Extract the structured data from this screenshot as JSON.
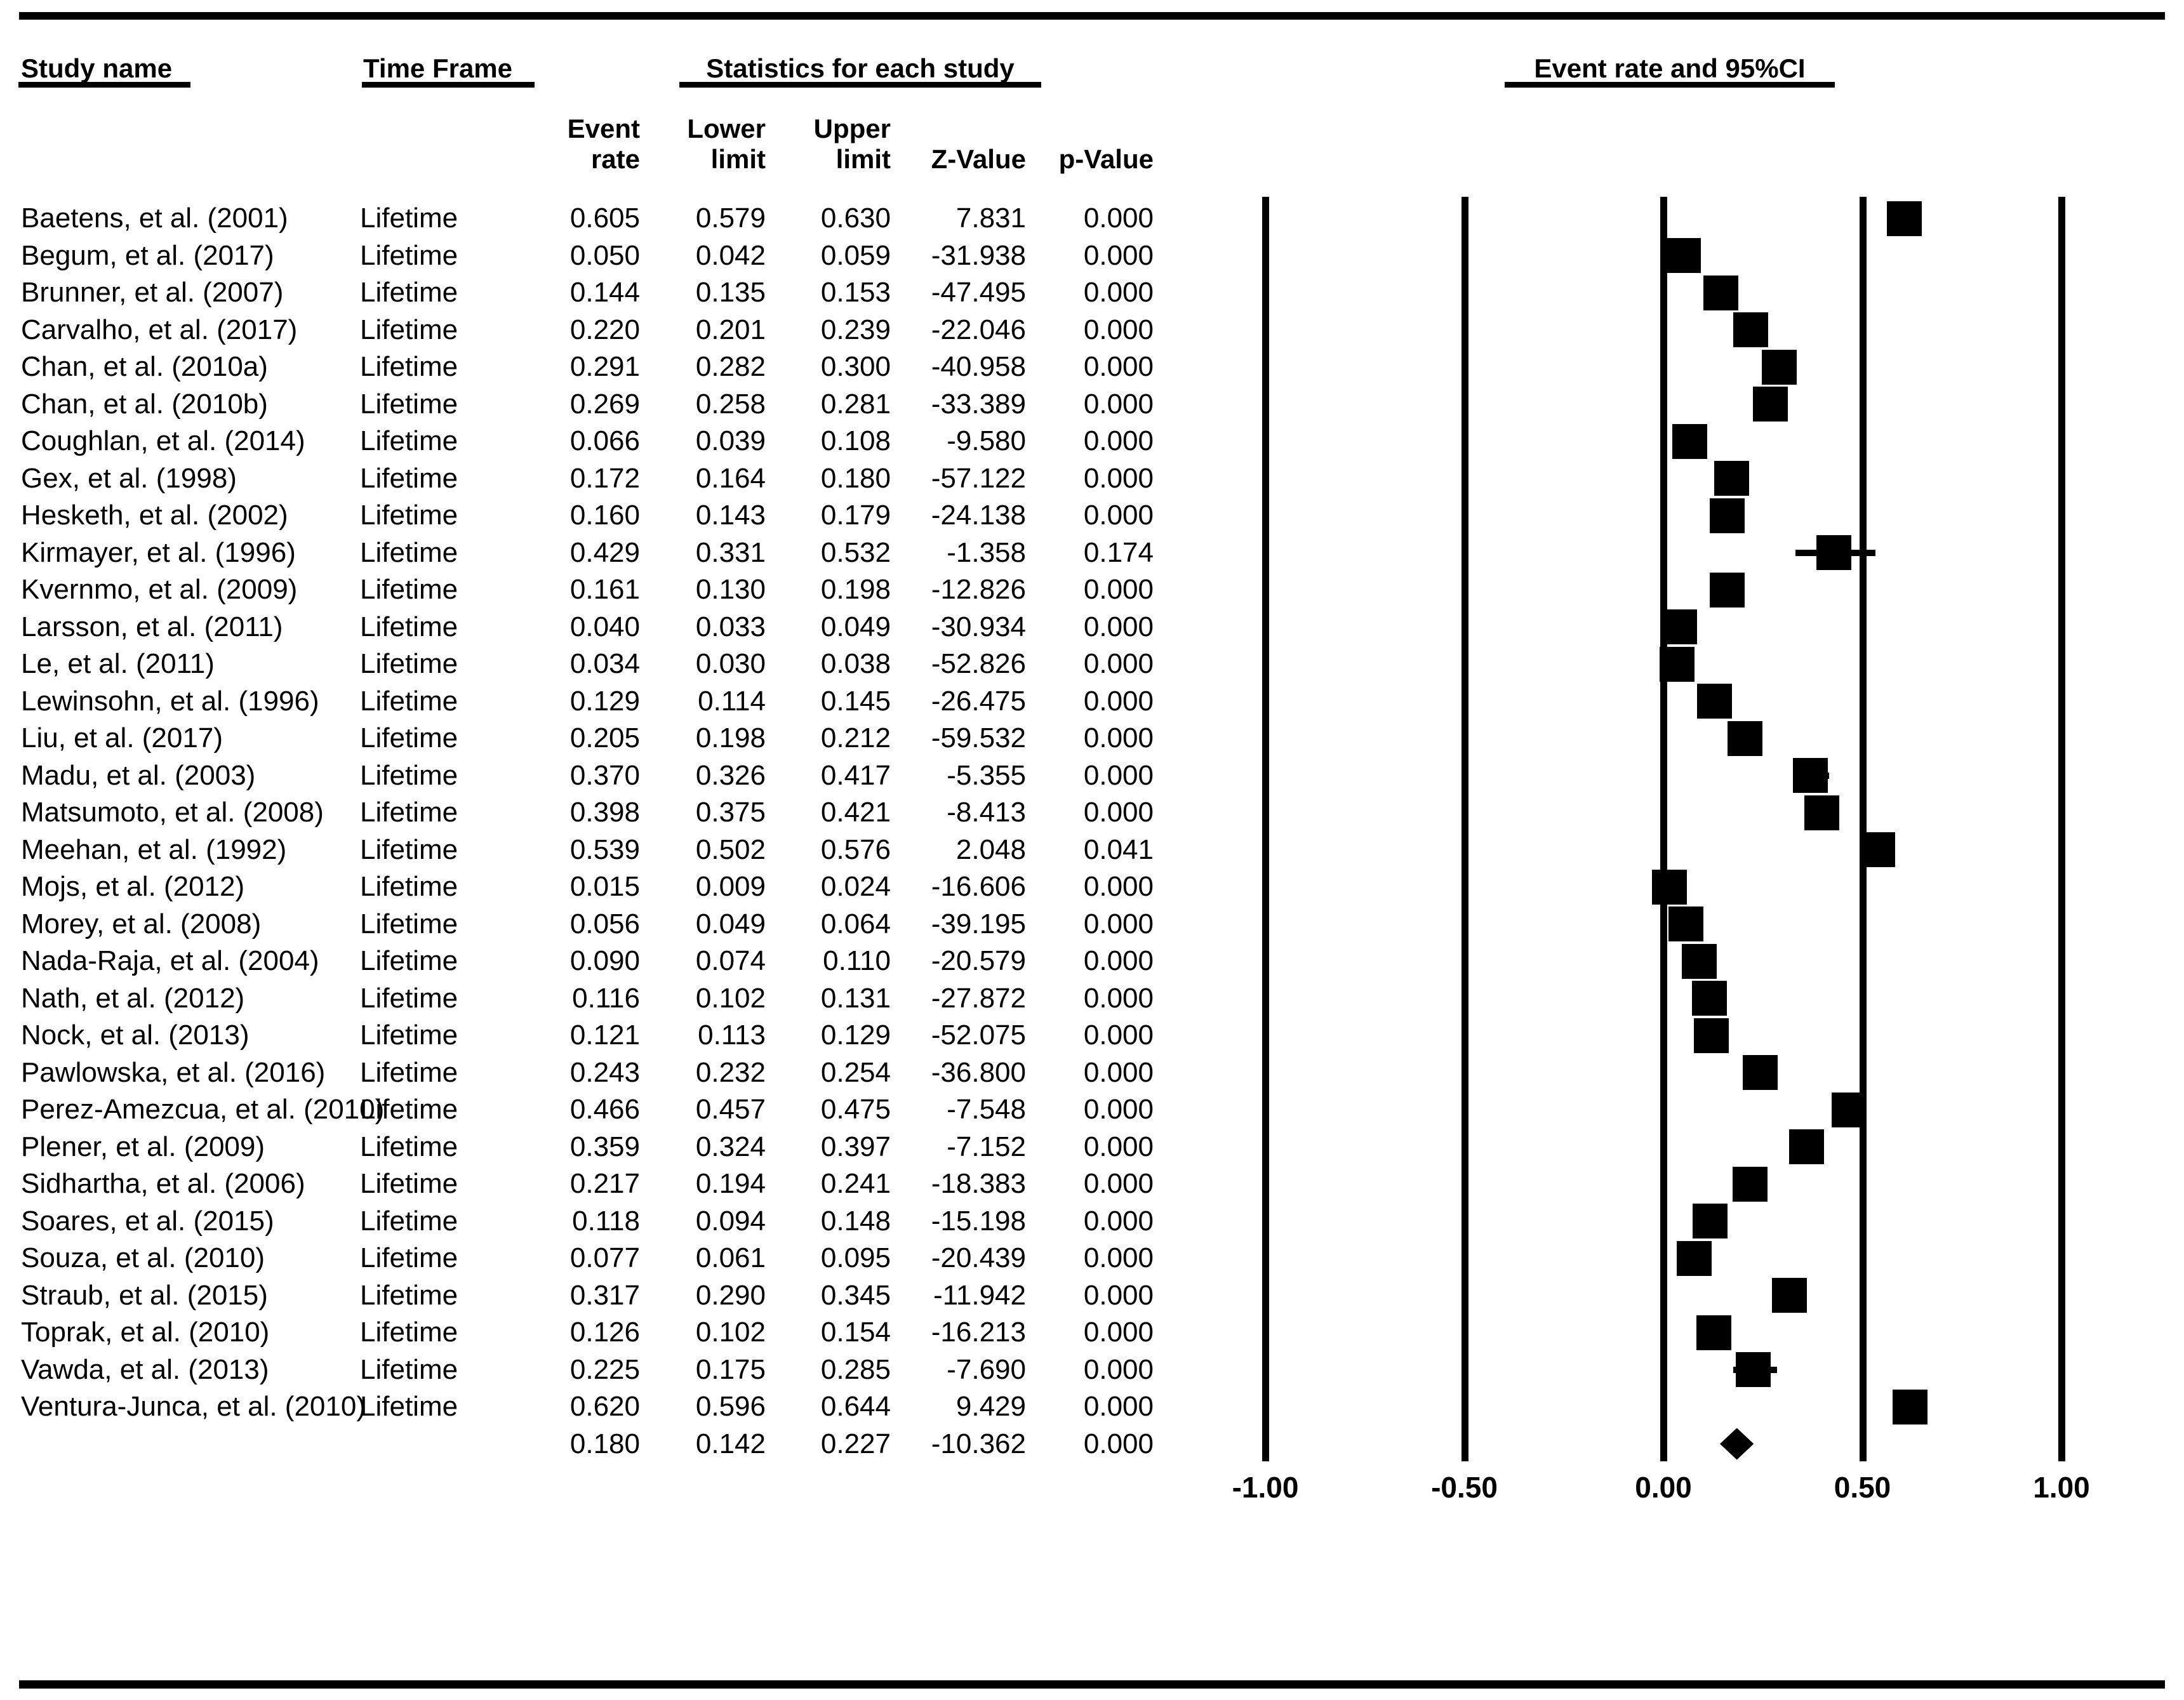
{
  "figure": {
    "columns": {
      "study": "Study name",
      "time_frame": "Time Frame",
      "stats_group": "Statistics for each study",
      "plot_group": "Event rate and 95%CI"
    },
    "subheaders": {
      "event_line1": "Event",
      "event_line2": "rate",
      "lower_line1": "Lower",
      "lower_line2": "limit",
      "upper_line1": "Upper",
      "upper_line2": "limit",
      "z": "Z-Value",
      "p": "p-Value"
    }
  },
  "chart_data": {
    "type": "scatter",
    "variant": "forest-plot",
    "title": "Event rate and 95%CI",
    "xlabel": "Event rate",
    "xlim": [
      -1.0,
      1.0
    ],
    "grid": "vertical-lines-at-ticks",
    "x_axis": {
      "tick_values": [
        -1.0,
        -0.5,
        0.0,
        0.5,
        1.0
      ],
      "tick_labels": [
        "-1.00",
        "-0.50",
        "0.00",
        "0.50",
        "1.00"
      ]
    },
    "rows": [
      {
        "name": "Baetens, et al. (2001)",
        "time": "Lifetime",
        "rate": "0.605",
        "lower": "0.579",
        "upper": "0.630",
        "z": "7.831",
        "p": "0.000"
      },
      {
        "name": "Begum, et al. (2017)",
        "time": "Lifetime",
        "rate": "0.050",
        "lower": "0.042",
        "upper": "0.059",
        "z": "-31.938",
        "p": "0.000"
      },
      {
        "name": "Brunner, et al. (2007)",
        "time": "Lifetime",
        "rate": "0.144",
        "lower": "0.135",
        "upper": "0.153",
        "z": "-47.495",
        "p": "0.000"
      },
      {
        "name": "Carvalho, et al. (2017)",
        "time": "Lifetime",
        "rate": "0.220",
        "lower": "0.201",
        "upper": "0.239",
        "z": "-22.046",
        "p": "0.000"
      },
      {
        "name": "Chan, et al. (2010a)",
        "time": "Lifetime",
        "rate": "0.291",
        "lower": "0.282",
        "upper": "0.300",
        "z": "-40.958",
        "p": "0.000"
      },
      {
        "name": "Chan, et al. (2010b)",
        "time": "Lifetime",
        "rate": "0.269",
        "lower": "0.258",
        "upper": "0.281",
        "z": "-33.389",
        "p": "0.000"
      },
      {
        "name": "Coughlan, et al. (2014)",
        "time": "Lifetime",
        "rate": "0.066",
        "lower": "0.039",
        "upper": "0.108",
        "z": "-9.580",
        "p": "0.000"
      },
      {
        "name": "Gex, et al. (1998)",
        "time": "Lifetime",
        "rate": "0.172",
        "lower": "0.164",
        "upper": "0.180",
        "z": "-57.122",
        "p": "0.000"
      },
      {
        "name": "Hesketh, et al. (2002)",
        "time": "Lifetime",
        "rate": "0.160",
        "lower": "0.143",
        "upper": "0.179",
        "z": "-24.138",
        "p": "0.000"
      },
      {
        "name": "Kirmayer, et al. (1996)",
        "time": "Lifetime",
        "rate": "0.429",
        "lower": "0.331",
        "upper": "0.532",
        "z": "-1.358",
        "p": "0.174"
      },
      {
        "name": "Kvernmo, et al. (2009)",
        "time": "Lifetime",
        "rate": "0.161",
        "lower": "0.130",
        "upper": "0.198",
        "z": "-12.826",
        "p": "0.000"
      },
      {
        "name": "Larsson, et al. (2011)",
        "time": "Lifetime",
        "rate": "0.040",
        "lower": "0.033",
        "upper": "0.049",
        "z": "-30.934",
        "p": "0.000"
      },
      {
        "name": "Le, et al. (2011)",
        "time": "Lifetime",
        "rate": "0.034",
        "lower": "0.030",
        "upper": "0.038",
        "z": "-52.826",
        "p": "0.000"
      },
      {
        "name": "Lewinsohn, et al. (1996)",
        "time": "Lifetime",
        "rate": "0.129",
        "lower": "0.114",
        "upper": "0.145",
        "z": "-26.475",
        "p": "0.000"
      },
      {
        "name": "Liu, et al. (2017)",
        "time": "Lifetime",
        "rate": "0.205",
        "lower": "0.198",
        "upper": "0.212",
        "z": "-59.532",
        "p": "0.000"
      },
      {
        "name": "Madu, et al. (2003)",
        "time": "Lifetime",
        "rate": "0.370",
        "lower": "0.326",
        "upper": "0.417",
        "z": "-5.355",
        "p": "0.000"
      },
      {
        "name": "Matsumoto, et al. (2008)",
        "time": "Lifetime",
        "rate": "0.398",
        "lower": "0.375",
        "upper": "0.421",
        "z": "-8.413",
        "p": "0.000"
      },
      {
        "name": "Meehan, et al. (1992)",
        "time": "Lifetime",
        "rate": "0.539",
        "lower": "0.502",
        "upper": "0.576",
        "z": "2.048",
        "p": "0.041"
      },
      {
        "name": "Mojs, et al. (2012)",
        "time": "Lifetime",
        "rate": "0.015",
        "lower": "0.009",
        "upper": "0.024",
        "z": "-16.606",
        "p": "0.000"
      },
      {
        "name": "Morey, et al. (2008)",
        "time": "Lifetime",
        "rate": "0.056",
        "lower": "0.049",
        "upper": "0.064",
        "z": "-39.195",
        "p": "0.000"
      },
      {
        "name": "Nada-Raja, et al. (2004)",
        "time": "Lifetime",
        "rate": "0.090",
        "lower": "0.074",
        "upper": "0.110",
        "z": "-20.579",
        "p": "0.000"
      },
      {
        "name": "Nath, et al. (2012)",
        "time": "Lifetime",
        "rate": "0.116",
        "lower": "0.102",
        "upper": "0.131",
        "z": "-27.872",
        "p": "0.000"
      },
      {
        "name": "Nock, et al. (2013)",
        "time": "Lifetime",
        "rate": "0.121",
        "lower": "0.113",
        "upper": "0.129",
        "z": "-52.075",
        "p": "0.000"
      },
      {
        "name": "Pawlowska, et al.  (2016)",
        "time": "Lifetime",
        "rate": "0.243",
        "lower": "0.232",
        "upper": "0.254",
        "z": "-36.800",
        "p": "0.000"
      },
      {
        "name": "Perez-Amezcua, et al. (2010)",
        "time": "Lifetime",
        "rate": "0.466",
        "lower": "0.457",
        "upper": "0.475",
        "z": "-7.548",
        "p": "0.000"
      },
      {
        "name": "Plener, et al. (2009)",
        "time": "Lifetime",
        "rate": "0.359",
        "lower": "0.324",
        "upper": "0.397",
        "z": "-7.152",
        "p": "0.000"
      },
      {
        "name": "Sidhartha, et al. (2006)",
        "time": "Lifetime",
        "rate": "0.217",
        "lower": "0.194",
        "upper": "0.241",
        "z": "-18.383",
        "p": "0.000"
      },
      {
        "name": "Soares, et al. (2015)",
        "time": "Lifetime",
        "rate": "0.118",
        "lower": "0.094",
        "upper": "0.148",
        "z": "-15.198",
        "p": "0.000"
      },
      {
        "name": "Souza, et al. (2010)",
        "time": "Lifetime",
        "rate": "0.077",
        "lower": "0.061",
        "upper": "0.095",
        "z": "-20.439",
        "p": "0.000"
      },
      {
        "name": "Straub, et al. (2015)",
        "time": "Lifetime",
        "rate": "0.317",
        "lower": "0.290",
        "upper": "0.345",
        "z": "-11.942",
        "p": "0.000"
      },
      {
        "name": "Toprak, et al. (2010)",
        "time": "Lifetime",
        "rate": "0.126",
        "lower": "0.102",
        "upper": "0.154",
        "z": "-16.213",
        "p": "0.000"
      },
      {
        "name": "Vawda, et al. (2013)",
        "time": "Lifetime",
        "rate": "0.225",
        "lower": "0.175",
        "upper": "0.285",
        "z": "-7.690",
        "p": "0.000"
      },
      {
        "name": "Ventura-Junca, et al. (2010)",
        "time": "Lifetime",
        "rate": "0.620",
        "lower": "0.596",
        "upper": "0.644",
        "z": "9.429",
        "p": "0.000"
      }
    ],
    "summary": {
      "name": "",
      "time": "",
      "rate": "0.180",
      "lower": "0.142",
      "upper": "0.227",
      "z": "-10.362",
      "p": "0.000"
    }
  }
}
